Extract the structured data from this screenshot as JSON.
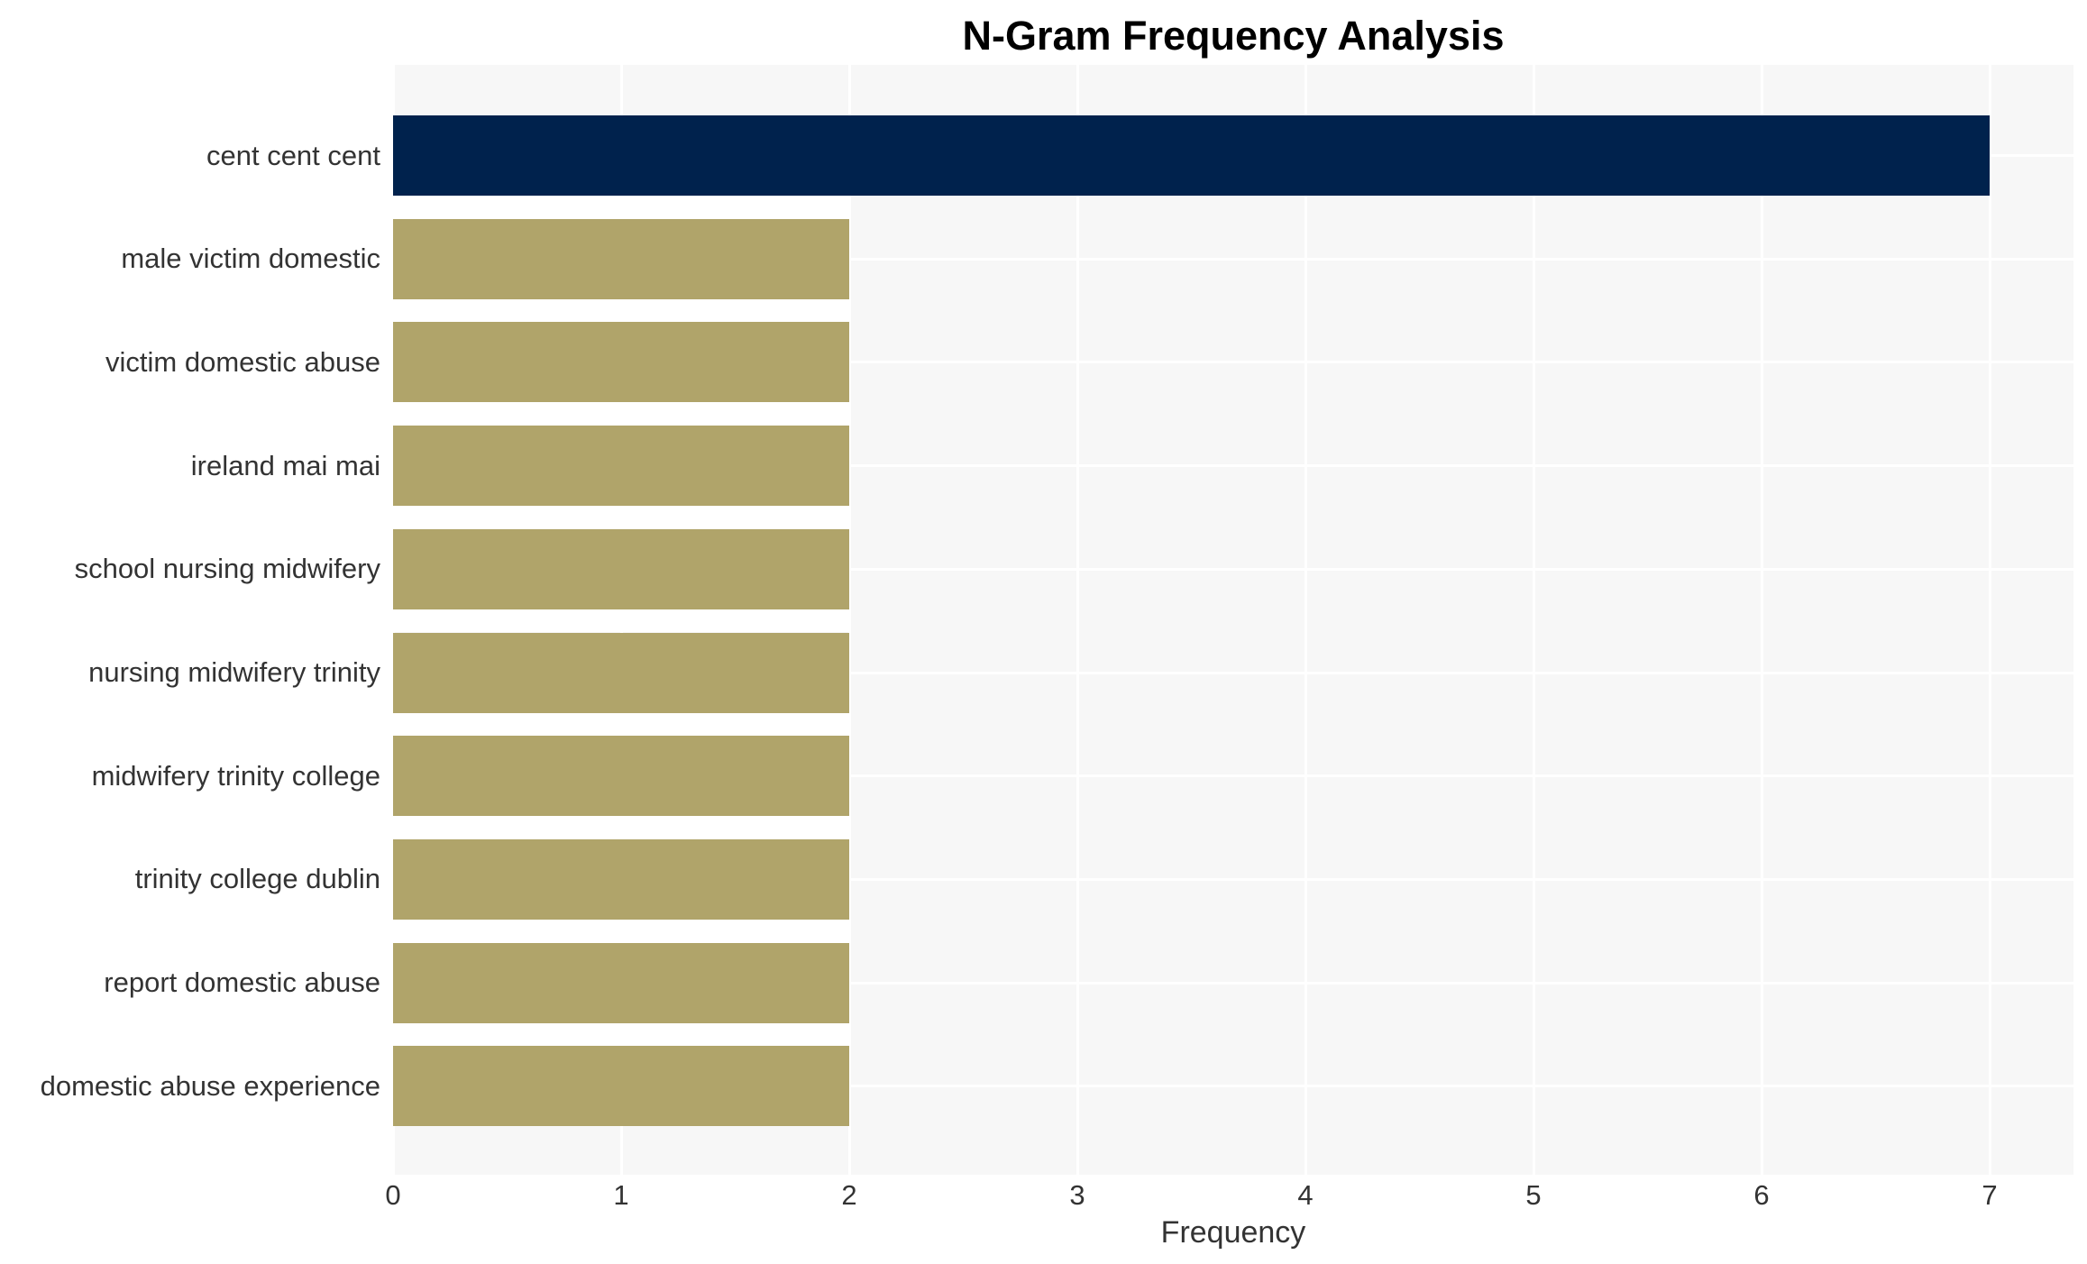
{
  "chart_data": {
    "type": "bar",
    "orientation": "horizontal",
    "title": "N-Gram Frequency Analysis",
    "xlabel": "Frequency",
    "ylabel": "",
    "categories": [
      "cent cent cent",
      "male victim domestic",
      "victim domestic abuse",
      "ireland mai mai",
      "school nursing midwifery",
      "nursing midwifery trinity",
      "midwifery trinity college",
      "trinity college dublin",
      "report domestic abuse",
      "domestic abuse experience"
    ],
    "values": [
      7,
      2,
      2,
      2,
      2,
      2,
      2,
      2,
      2,
      2
    ],
    "x_ticks": [
      "0",
      "1",
      "2",
      "3",
      "4",
      "5",
      "6",
      "7"
    ],
    "xlim": [
      0,
      7.37
    ],
    "grid": true,
    "legend": false,
    "colors": {
      "bar_highlight": "#00224d",
      "bar_default": "#b0a46a",
      "plot_bg": "#f7f7f7",
      "grid": "#ffffff",
      "tick_text": "#333333",
      "title_text": "#000000"
    }
  }
}
